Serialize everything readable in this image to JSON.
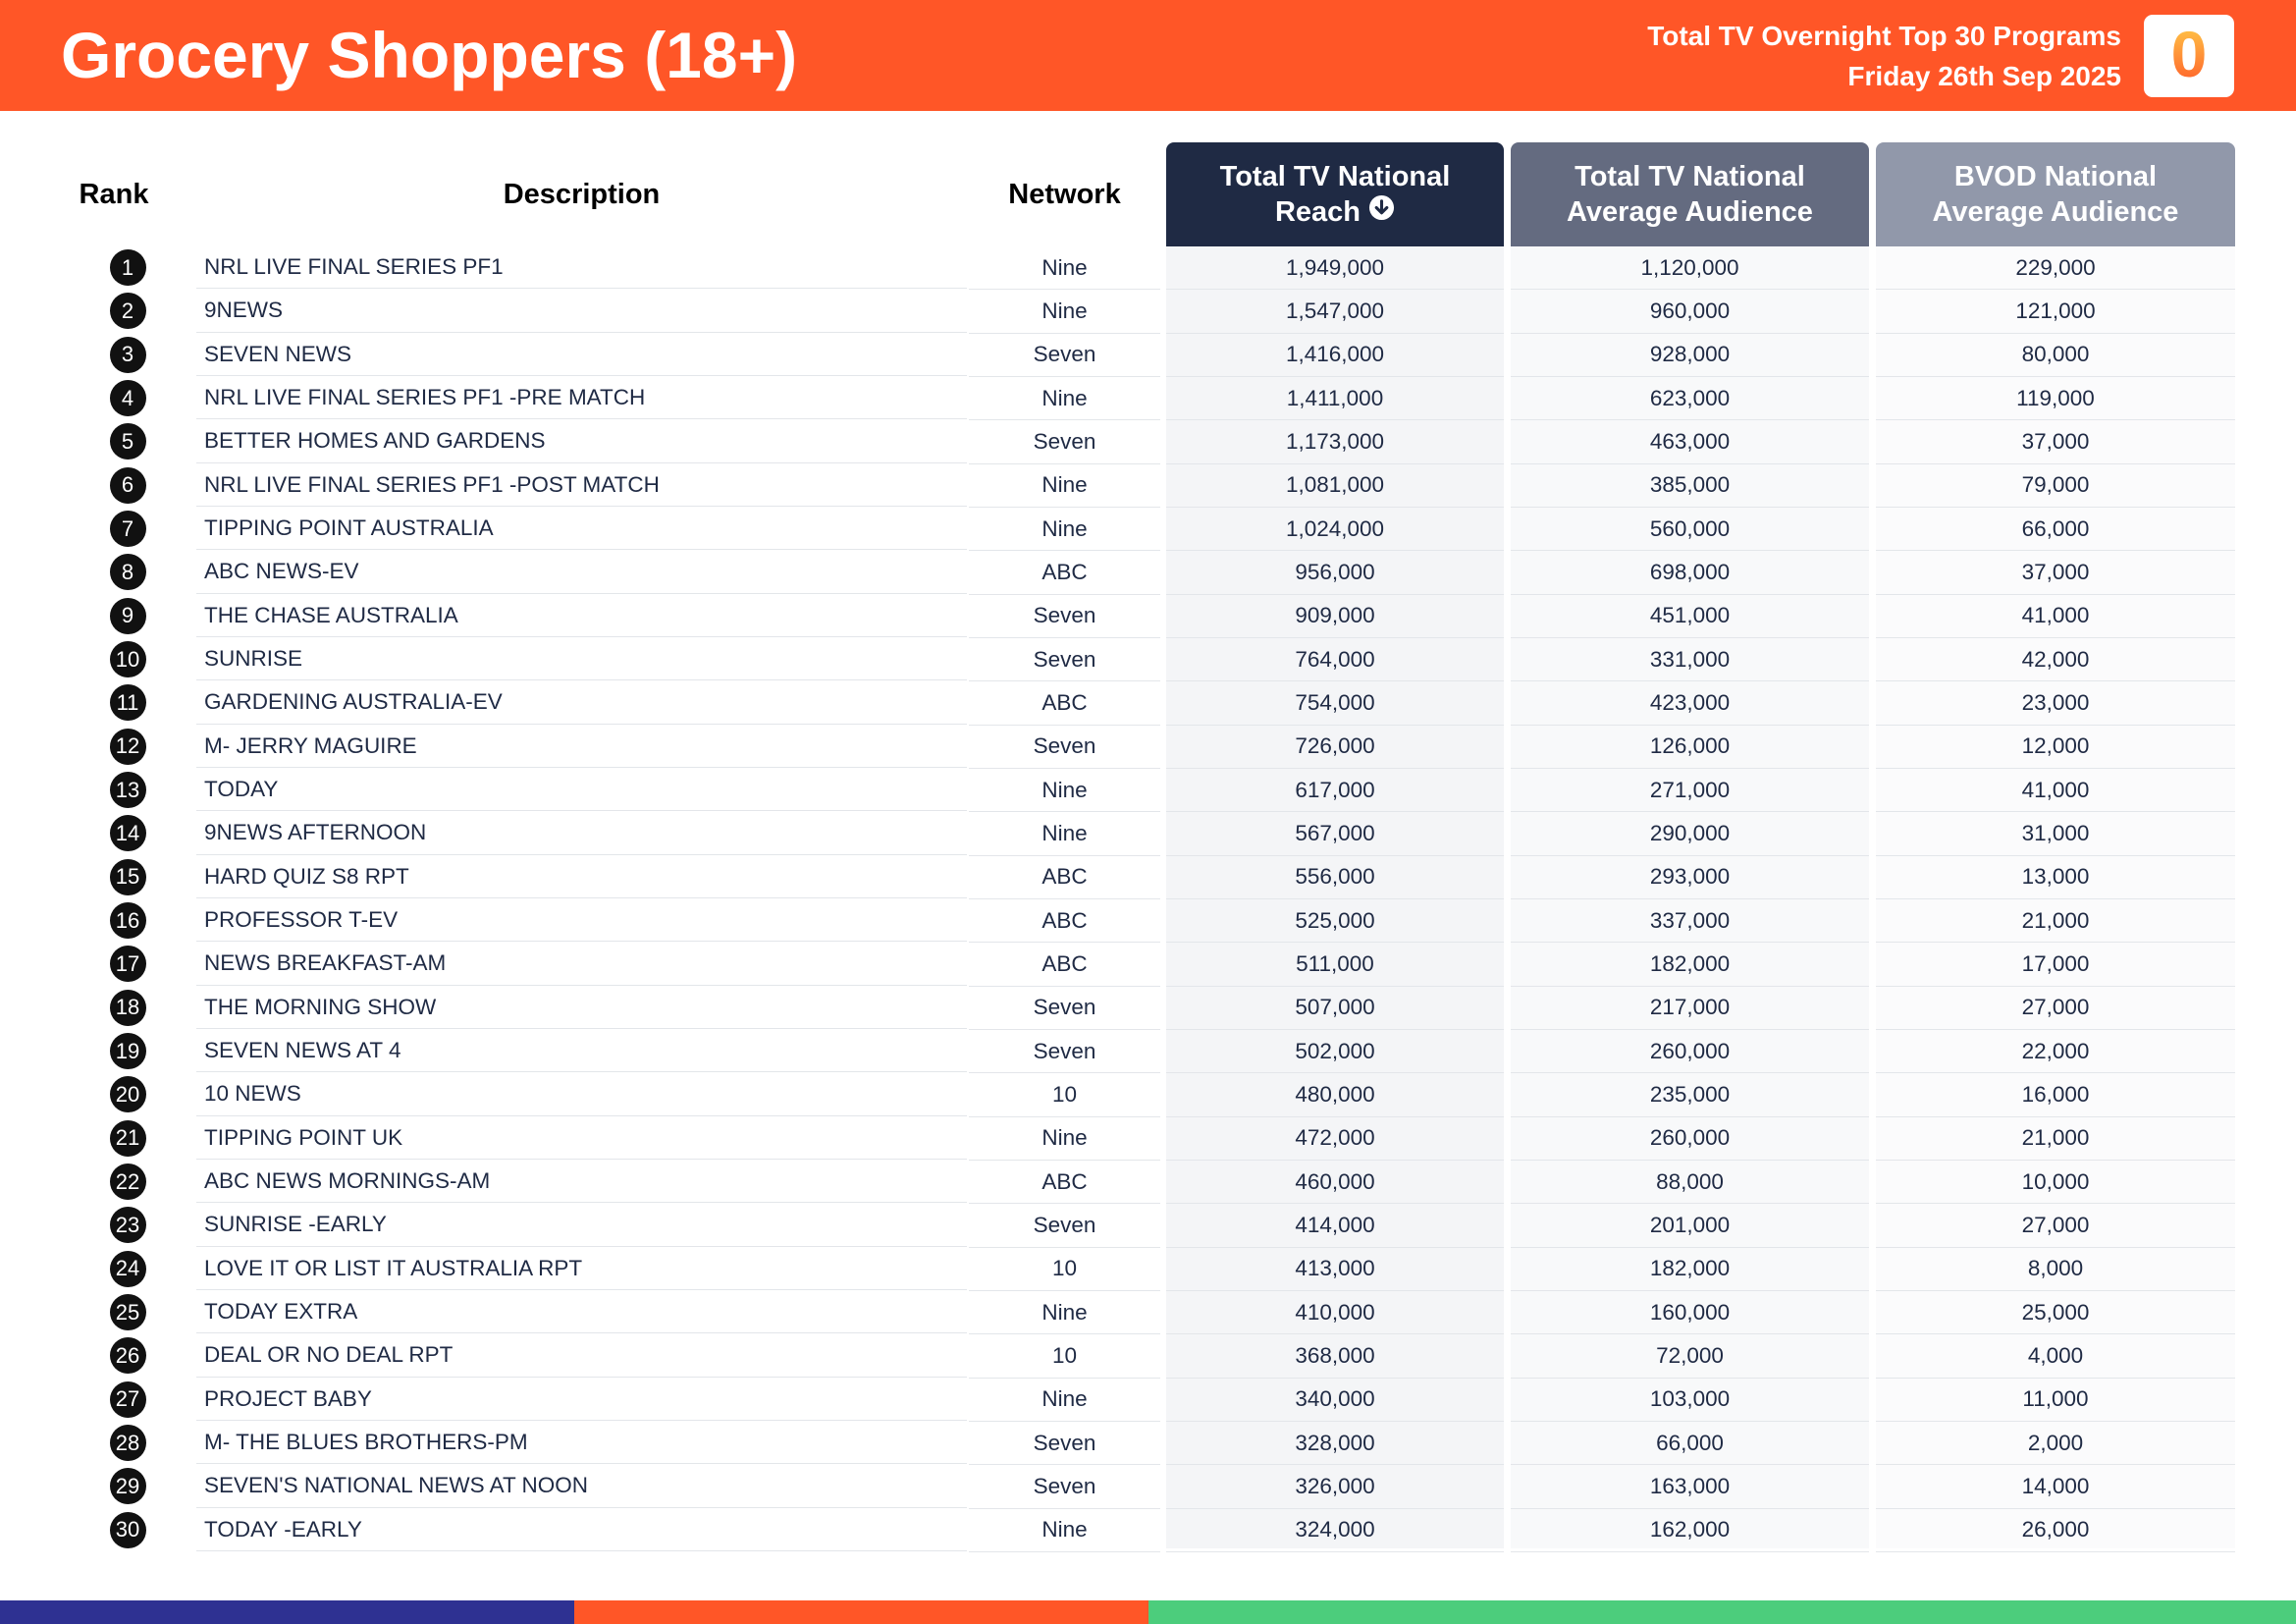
{
  "header": {
    "title": "Grocery Shoppers (18+)",
    "subtitle_line1": "Total TV Overnight Top 30 Programs",
    "subtitle_line2": "Friday 26th Sep 2025",
    "logo_text": "0"
  },
  "columns": {
    "rank": "Rank",
    "description": "Description",
    "network": "Network",
    "reach_line1": "Total TV National",
    "reach_line2": "Reach",
    "avg_line1": "Total TV National",
    "avg_line2": "Average Audience",
    "bvod_line1": "BVOD National",
    "bvod_line2": "Average Audience",
    "sort_icon": "arrow-down-circle-icon"
  },
  "colors": {
    "header_orange": "#ff5627",
    "reach_header": "#1f2a44",
    "avg_header": "#646b80",
    "bvod_header": "#9198aa",
    "footer_blue": "#2e3192",
    "footer_orange": "#ff5627",
    "footer_green": "#4ccd7c"
  },
  "rows": [
    {
      "rank": "1",
      "description": "NRL LIVE FINAL SERIES PF1",
      "network": "Nine",
      "reach": "1,949,000",
      "avg": "1,120,000",
      "bvod": "229,000"
    },
    {
      "rank": "2",
      "description": "9NEWS",
      "network": "Nine",
      "reach": "1,547,000",
      "avg": "960,000",
      "bvod": "121,000"
    },
    {
      "rank": "3",
      "description": "SEVEN NEWS",
      "network": "Seven",
      "reach": "1,416,000",
      "avg": "928,000",
      "bvod": "80,000"
    },
    {
      "rank": "4",
      "description": "NRL LIVE FINAL SERIES PF1 -PRE MATCH",
      "network": "Nine",
      "reach": "1,411,000",
      "avg": "623,000",
      "bvod": "119,000"
    },
    {
      "rank": "5",
      "description": "BETTER HOMES AND GARDENS",
      "network": "Seven",
      "reach": "1,173,000",
      "avg": "463,000",
      "bvod": "37,000"
    },
    {
      "rank": "6",
      "description": "NRL LIVE FINAL SERIES PF1 -POST MATCH",
      "network": "Nine",
      "reach": "1,081,000",
      "avg": "385,000",
      "bvod": "79,000"
    },
    {
      "rank": "7",
      "description": "TIPPING POINT AUSTRALIA",
      "network": "Nine",
      "reach": "1,024,000",
      "avg": "560,000",
      "bvod": "66,000"
    },
    {
      "rank": "8",
      "description": "ABC NEWS-EV",
      "network": "ABC",
      "reach": "956,000",
      "avg": "698,000",
      "bvod": "37,000"
    },
    {
      "rank": "9",
      "description": "THE CHASE AUSTRALIA",
      "network": "Seven",
      "reach": "909,000",
      "avg": "451,000",
      "bvod": "41,000"
    },
    {
      "rank": "10",
      "description": "SUNRISE",
      "network": "Seven",
      "reach": "764,000",
      "avg": "331,000",
      "bvod": "42,000"
    },
    {
      "rank": "11",
      "description": "GARDENING AUSTRALIA-EV",
      "network": "ABC",
      "reach": "754,000",
      "avg": "423,000",
      "bvod": "23,000"
    },
    {
      "rank": "12",
      "description": "M- JERRY MAGUIRE",
      "network": "Seven",
      "reach": "726,000",
      "avg": "126,000",
      "bvod": "12,000"
    },
    {
      "rank": "13",
      "description": "TODAY",
      "network": "Nine",
      "reach": "617,000",
      "avg": "271,000",
      "bvod": "41,000"
    },
    {
      "rank": "14",
      "description": "9NEWS AFTERNOON",
      "network": "Nine",
      "reach": "567,000",
      "avg": "290,000",
      "bvod": "31,000"
    },
    {
      "rank": "15",
      "description": "HARD QUIZ S8 RPT",
      "network": "ABC",
      "reach": "556,000",
      "avg": "293,000",
      "bvod": "13,000"
    },
    {
      "rank": "16",
      "description": "PROFESSOR T-EV",
      "network": "ABC",
      "reach": "525,000",
      "avg": "337,000",
      "bvod": "21,000"
    },
    {
      "rank": "17",
      "description": "NEWS BREAKFAST-AM",
      "network": "ABC",
      "reach": "511,000",
      "avg": "182,000",
      "bvod": "17,000"
    },
    {
      "rank": "18",
      "description": "THE MORNING SHOW",
      "network": "Seven",
      "reach": "507,000",
      "avg": "217,000",
      "bvod": "27,000"
    },
    {
      "rank": "19",
      "description": "SEVEN NEWS AT 4",
      "network": "Seven",
      "reach": "502,000",
      "avg": "260,000",
      "bvod": "22,000"
    },
    {
      "rank": "20",
      "description": "10 NEWS",
      "network": "10",
      "reach": "480,000",
      "avg": "235,000",
      "bvod": "16,000"
    },
    {
      "rank": "21",
      "description": "TIPPING POINT UK",
      "network": "Nine",
      "reach": "472,000",
      "avg": "260,000",
      "bvod": "21,000"
    },
    {
      "rank": "22",
      "description": "ABC NEWS MORNINGS-AM",
      "network": "ABC",
      "reach": "460,000",
      "avg": "88,000",
      "bvod": "10,000"
    },
    {
      "rank": "23",
      "description": "SUNRISE -EARLY",
      "network": "Seven",
      "reach": "414,000",
      "avg": "201,000",
      "bvod": "27,000"
    },
    {
      "rank": "24",
      "description": "LOVE IT OR LIST IT AUSTRALIA RPT",
      "network": "10",
      "reach": "413,000",
      "avg": "182,000",
      "bvod": "8,000"
    },
    {
      "rank": "25",
      "description": "TODAY EXTRA",
      "network": "Nine",
      "reach": "410,000",
      "avg": "160,000",
      "bvod": "25,000"
    },
    {
      "rank": "26",
      "description": "DEAL OR NO DEAL RPT",
      "network": "10",
      "reach": "368,000",
      "avg": "72,000",
      "bvod": "4,000"
    },
    {
      "rank": "27",
      "description": "PROJECT BABY",
      "network": "Nine",
      "reach": "340,000",
      "avg": "103,000",
      "bvod": "11,000"
    },
    {
      "rank": "28",
      "description": "M- THE BLUES BROTHERS-PM",
      "network": "Seven",
      "reach": "328,000",
      "avg": "66,000",
      "bvod": "2,000"
    },
    {
      "rank": "29",
      "description": "SEVEN'S NATIONAL NEWS AT NOON",
      "network": "Seven",
      "reach": "326,000",
      "avg": "163,000",
      "bvod": "14,000"
    },
    {
      "rank": "30",
      "description": "TODAY -EARLY",
      "network": "Nine",
      "reach": "324,000",
      "avg": "162,000",
      "bvod": "26,000"
    }
  ]
}
